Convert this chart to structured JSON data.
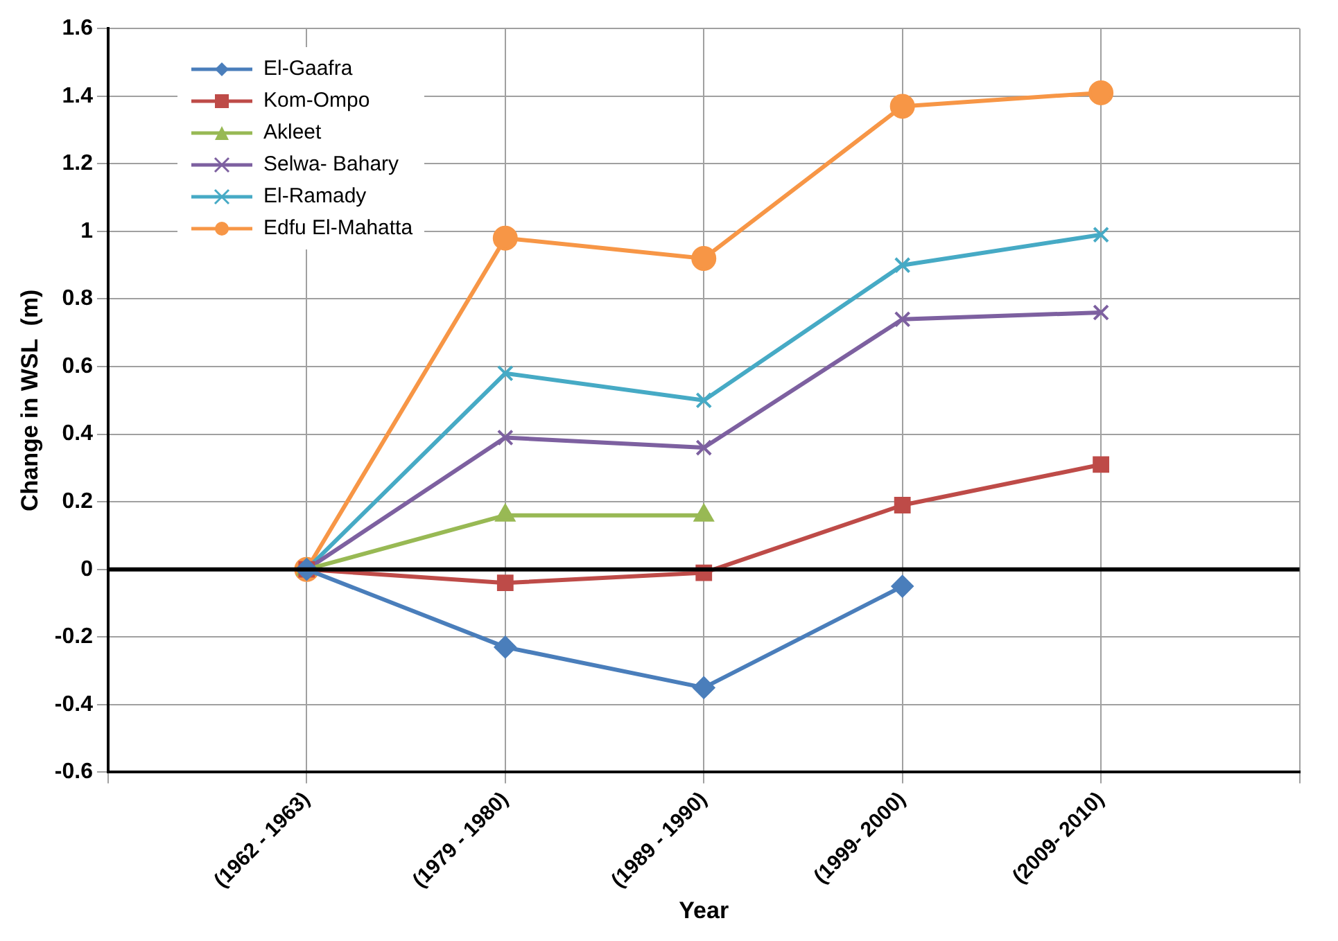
{
  "chart_data": {
    "type": "line",
    "xlabel": "Year",
    "ylabel": "Change in WSL  (m)",
    "categories": [
      null,
      "(1962 - 1963)",
      "(1979 - 1980)",
      "(1989 - 1990)",
      "(1999- 2000)",
      "(2009- 2010)",
      null
    ],
    "series": [
      {
        "name": "El-Gaafra",
        "color": "#4a7ebb",
        "marker": "diamond",
        "values": [
          null,
          0,
          -0.23,
          -0.35,
          -0.05,
          null,
          null
        ]
      },
      {
        "name": "Kom-Ompo",
        "color": "#be4b48",
        "marker": "square",
        "values": [
          null,
          0,
          -0.04,
          -0.01,
          0.19,
          0.31,
          null
        ]
      },
      {
        "name": "Akleet",
        "color": "#98b954",
        "marker": "triangle",
        "values": [
          null,
          0,
          0.16,
          0.16,
          null,
          null,
          null
        ]
      },
      {
        "name": "Selwa- Bahary",
        "color": "#7d60a0",
        "marker": "cross",
        "values": [
          null,
          0,
          0.39,
          0.36,
          0.74,
          0.76,
          null
        ]
      },
      {
        "name": "El-Ramady",
        "color": "#46aac5",
        "marker": "cross",
        "values": [
          null,
          0,
          0.58,
          0.5,
          0.9,
          0.99,
          null
        ]
      },
      {
        "name": "Edfu El-Mahatta",
        "color": "#f79646",
        "marker": "circle",
        "values": [
          null,
          0,
          0.98,
          0.92,
          1.37,
          1.41,
          null
        ]
      }
    ],
    "ylim": [
      -0.6,
      1.6
    ],
    "yticks": [
      -0.6,
      -0.4,
      -0.2,
      0,
      0.2,
      0.4,
      0.6,
      0.8,
      1,
      1.2,
      1.4,
      1.6
    ],
    "ref_lines": [
      {
        "axis": "y",
        "value": 0,
        "color": "#000000"
      }
    ],
    "grid": true,
    "legend": "top left",
    "line_style": "solid"
  }
}
